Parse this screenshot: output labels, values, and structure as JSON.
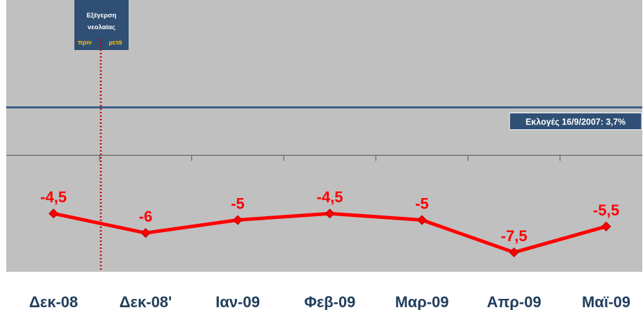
{
  "chart_data": {
    "type": "line",
    "categories": [
      "Δεκ-08",
      "Δεκ-08'",
      "Ιαν-09",
      "Φεβ-09",
      "Μαρ-09",
      "Απρ-09",
      "Μαϊ-09"
    ],
    "values": [
      -4.5,
      -6,
      -5,
      -4.5,
      -5,
      -7.5,
      -5.5
    ],
    "value_labels": [
      "-4,5",
      "-6",
      "-5",
      "-4,5",
      "-5",
      "-7,5",
      "-5,5"
    ],
    "ylim": [
      -9,
      12
    ],
    "series_color": "#ff0000",
    "reference_line": {
      "value": 3.7,
      "label": "Εκλογές 16/9/2007: 3,7%",
      "color": "#3a5f86"
    },
    "event": {
      "title_line1": "Εξέγερση",
      "title_line2": "νεολαίας",
      "before": "πριν",
      "after": "μετά",
      "line_color": "#c00000",
      "box_color": "#2f4f74"
    },
    "plot_background": "#c0c0c0",
    "zero_axis": true
  }
}
